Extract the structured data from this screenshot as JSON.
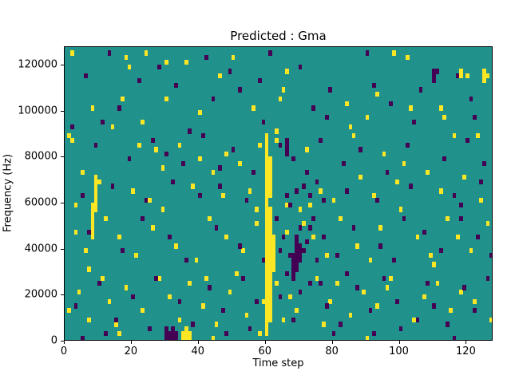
{
  "chart_data": {
    "type": "heatmap",
    "title": "Predicted : Gma",
    "xlabel": "Time step",
    "ylabel": "Frequency (Hz)",
    "xlim": [
      0,
      128
    ],
    "ylim": [
      0,
      128000
    ],
    "x_ticks": [
      0,
      20,
      40,
      60,
      80,
      100,
      120
    ],
    "y_ticks": [
      0,
      20000,
      40000,
      60000,
      80000,
      100000,
      120000
    ],
    "grid": false,
    "legend": "none",
    "cell_size": {
      "x": 1,
      "y_hz": 2000
    },
    "colors": {
      "background": "#21918c",
      "high": "#fde725",
      "low": "#440154",
      "figure_bg": "#ffffff"
    },
    "cells": {
      "y_spans": [
        [
          60,
          2000,
          88000
        ],
        [
          61,
          8000,
          56000
        ],
        [
          61,
          62000,
          78000
        ],
        [
          62,
          30000,
          44000
        ],
        [
          8,
          44000,
          58000
        ],
        [
          9,
          56000,
          70000
        ],
        [
          35,
          0,
          2000
        ],
        [
          36,
          0,
          4000
        ],
        [
          37,
          0,
          2000
        ],
        [
          118,
          114000,
          116000
        ],
        [
          125,
          112000,
          116000
        ]
      ],
      "d_spans": [
        [
          30,
          0,
          4000
        ],
        [
          31,
          0,
          2000
        ],
        [
          32,
          0,
          4000
        ],
        [
          33,
          0,
          2000
        ],
        [
          68,
          26000,
          36000
        ],
        [
          69,
          30000,
          42000
        ],
        [
          70,
          34000,
          40000
        ],
        [
          110,
          112000,
          116000
        ],
        [
          66,
          80000,
          86000
        ]
      ],
      "y": [
        [
          2,
          124000
        ],
        [
          18,
          122000
        ],
        [
          19,
          118000
        ],
        [
          24,
          124000
        ],
        [
          30,
          120000
        ],
        [
          36,
          120000
        ],
        [
          50,
          122000
        ],
        [
          56,
          100000
        ],
        [
          64,
          104000
        ],
        [
          65,
          108000
        ],
        [
          66,
          116000
        ],
        [
          84,
          102000
        ],
        [
          98,
          124000
        ],
        [
          102,
          122000
        ],
        [
          103,
          100000
        ],
        [
          120,
          114000
        ],
        [
          125,
          116000
        ],
        [
          126,
          114000
        ],
        [
          17,
          104000
        ],
        [
          30,
          104000
        ],
        [
          8,
          100000
        ],
        [
          46,
          114000
        ],
        [
          93,
          106000
        ],
        [
          112,
          100000
        ],
        [
          14,
          92000
        ],
        [
          63,
          90000
        ],
        [
          90,
          96000
        ],
        [
          113,
          96000
        ],
        [
          23,
          94000
        ],
        [
          40,
          98000
        ],
        [
          85,
          92000
        ],
        [
          1,
          88000
        ],
        [
          2,
          86000
        ],
        [
          22,
          84000
        ],
        [
          27,
          82000
        ],
        [
          34,
          84000
        ],
        [
          40,
          78000
        ],
        [
          44,
          72000
        ],
        [
          52,
          76000
        ],
        [
          58,
          84000
        ],
        [
          63,
          86000
        ],
        [
          72,
          82000
        ],
        [
          86,
          88000
        ],
        [
          95,
          80000
        ],
        [
          101,
          76000
        ],
        [
          108,
          72000
        ],
        [
          116,
          88000
        ],
        [
          123,
          88000
        ],
        [
          5,
          72000
        ],
        [
          88,
          70000
        ],
        [
          119,
          70000
        ],
        [
          29,
          74000
        ],
        [
          48,
          80000
        ],
        [
          10,
          68000
        ],
        [
          20,
          64000
        ],
        [
          25,
          60000
        ],
        [
          38,
          66000
        ],
        [
          47,
          62000
        ],
        [
          55,
          64000
        ],
        [
          76,
          64000
        ],
        [
          80,
          60000
        ],
        [
          92,
          62000
        ],
        [
          99,
          68000
        ],
        [
          112,
          64000
        ],
        [
          124,
          60000
        ],
        [
          3,
          58000
        ],
        [
          70,
          56000
        ],
        [
          29,
          56000
        ],
        [
          57,
          56000
        ],
        [
          66,
          58000
        ],
        [
          100,
          56000
        ],
        [
          73,
          58000
        ],
        [
          3,
          46000
        ],
        [
          6,
          38000
        ],
        [
          12,
          52000
        ],
        [
          16,
          44000
        ],
        [
          21,
          36000
        ],
        [
          26,
          48000
        ],
        [
          33,
          40000
        ],
        [
          39,
          34000
        ],
        [
          43,
          52000
        ],
        [
          48,
          44000
        ],
        [
          53,
          38000
        ],
        [
          57,
          50000
        ],
        [
          66,
          46000
        ],
        [
          74,
          44000
        ],
        [
          78,
          36000
        ],
        [
          82,
          52000
        ],
        [
          87,
          40000
        ],
        [
          91,
          34000
        ],
        [
          94,
          48000
        ],
        [
          105,
          44000
        ],
        [
          109,
          36000
        ],
        [
          114,
          52000
        ],
        [
          117,
          44000
        ],
        [
          121,
          38000
        ],
        [
          126,
          50000
        ],
        [
          71,
          50000
        ],
        [
          110,
          32000
        ],
        [
          7,
          30000
        ],
        [
          1,
          12000
        ],
        [
          4,
          20000
        ],
        [
          7,
          8000
        ],
        [
          11,
          26000
        ],
        [
          13,
          16000
        ],
        [
          15,
          6000
        ],
        [
          18,
          22000
        ],
        [
          23,
          12000
        ],
        [
          28,
          26000
        ],
        [
          31,
          18000
        ],
        [
          34,
          8000
        ],
        [
          37,
          24000
        ],
        [
          41,
          14000
        ],
        [
          45,
          6000
        ],
        [
          49,
          20000
        ],
        [
          51,
          28000
        ],
        [
          54,
          10000
        ],
        [
          59,
          16000
        ],
        [
          63,
          24000
        ],
        [
          65,
          8000
        ],
        [
          67,
          18000
        ],
        [
          69,
          12000
        ],
        [
          75,
          26000
        ],
        [
          77,
          6000
        ],
        [
          79,
          16000
        ],
        [
          81,
          24000
        ],
        [
          85,
          10000
        ],
        [
          89,
          20000
        ],
        [
          93,
          14000
        ],
        [
          97,
          26000
        ],
        [
          104,
          8000
        ],
        [
          107,
          18000
        ],
        [
          111,
          24000
        ],
        [
          115,
          12000
        ],
        [
          118,
          20000
        ],
        [
          122,
          16000
        ],
        [
          127,
          8000
        ],
        [
          42,
          26000
        ],
        [
          96,
          22000
        ],
        [
          44,
          0
        ],
        [
          58,
          2000
        ],
        [
          90,
          0
        ],
        [
          16,
          2000
        ]
      ],
      "d": [
        [
          13,
          124000
        ],
        [
          28,
          118000
        ],
        [
          42,
          122000
        ],
        [
          49,
          116000
        ],
        [
          61,
          124000
        ],
        [
          70,
          118000
        ],
        [
          90,
          124000
        ],
        [
          111,
          116000
        ],
        [
          117,
          114000
        ],
        [
          6,
          114000
        ],
        [
          22,
          112000
        ],
        [
          33,
          110000
        ],
        [
          58,
          112000
        ],
        [
          79,
          108000
        ],
        [
          92,
          110000
        ],
        [
          106,
          108000
        ],
        [
          121,
          104000
        ],
        [
          16,
          100000
        ],
        [
          44,
          104000
        ],
        [
          74,
          100000
        ],
        [
          97,
          102000
        ],
        [
          52,
          108000
        ],
        [
          11,
          94000
        ],
        [
          37,
          90000
        ],
        [
          59,
          94000
        ],
        [
          78,
          96000
        ],
        [
          104,
          94000
        ],
        [
          122,
          96000
        ],
        [
          2,
          92000
        ],
        [
          9,
          84000
        ],
        [
          19,
          78000
        ],
        [
          26,
          86000
        ],
        [
          35,
          76000
        ],
        [
          41,
          88000
        ],
        [
          50,
          82000
        ],
        [
          56,
          72000
        ],
        [
          64,
          84000
        ],
        [
          68,
          78000
        ],
        [
          72,
          72000
        ],
        [
          76,
          86000
        ],
        [
          83,
          76000
        ],
        [
          88,
          82000
        ],
        [
          96,
          72000
        ],
        [
          102,
          84000
        ],
        [
          113,
          78000
        ],
        [
          120,
          86000
        ],
        [
          125,
          76000
        ],
        [
          46,
          74000
        ],
        [
          30,
          80000
        ],
        [
          5,
          62000
        ],
        [
          14,
          66000
        ],
        [
          24,
          60000
        ],
        [
          32,
          68000
        ],
        [
          40,
          62000
        ],
        [
          46,
          66000
        ],
        [
          54,
          60000
        ],
        [
          66,
          62000
        ],
        [
          71,
          66000
        ],
        [
          73,
          62000
        ],
        [
          75,
          68000
        ],
        [
          84,
          64000
        ],
        [
          93,
          60000
        ],
        [
          103,
          66000
        ],
        [
          116,
          62000
        ],
        [
          124,
          68000
        ],
        [
          67,
          58000
        ],
        [
          69,
          64000
        ],
        [
          77,
          60000
        ],
        [
          118,
          58000
        ],
        [
          7,
          46000
        ],
        [
          17,
          38000
        ],
        [
          23,
          52000
        ],
        [
          31,
          44000
        ],
        [
          36,
          34000
        ],
        [
          45,
          48000
        ],
        [
          52,
          40000
        ],
        [
          59,
          34000
        ],
        [
          63,
          52000
        ],
        [
          65,
          44000
        ],
        [
          67,
          36000
        ],
        [
          70,
          48000
        ],
        [
          72,
          42000
        ],
        [
          74,
          52000
        ],
        [
          77,
          44000
        ],
        [
          81,
          36000
        ],
        [
          86,
          48000
        ],
        [
          94,
          40000
        ],
        [
          98,
          34000
        ],
        [
          101,
          52000
        ],
        [
          107,
          46000
        ],
        [
          112,
          38000
        ],
        [
          118,
          52000
        ],
        [
          123,
          44000
        ],
        [
          127,
          36000
        ],
        [
          69,
          44000
        ],
        [
          71,
          38000
        ],
        [
          73,
          48000
        ],
        [
          75,
          34000
        ],
        [
          64,
          38000
        ],
        [
          3,
          14000
        ],
        [
          10,
          24000
        ],
        [
          15,
          8000
        ],
        [
          20,
          18000
        ],
        [
          27,
          26000
        ],
        [
          34,
          16000
        ],
        [
          38,
          6000
        ],
        [
          43,
          22000
        ],
        [
          47,
          12000
        ],
        [
          53,
          26000
        ],
        [
          57,
          16000
        ],
        [
          64,
          18000
        ],
        [
          68,
          8000
        ],
        [
          73,
          24000
        ],
        [
          78,
          14000
        ],
        [
          82,
          6000
        ],
        [
          87,
          22000
        ],
        [
          91,
          12000
        ],
        [
          95,
          26000
        ],
        [
          99,
          16000
        ],
        [
          105,
          8000
        ],
        [
          108,
          24000
        ],
        [
          110,
          14000
        ],
        [
          114,
          6000
        ],
        [
          119,
          22000
        ],
        [
          122,
          12000
        ],
        [
          126,
          26000
        ],
        [
          66,
          28000
        ],
        [
          70,
          20000
        ],
        [
          76,
          24000
        ],
        [
          84,
          28000
        ],
        [
          12,
          2000
        ],
        [
          25,
          4000
        ],
        [
          48,
          2000
        ],
        [
          55,
          4000
        ],
        [
          80,
          2000
        ],
        [
          100,
          4000
        ],
        [
          5,
          0
        ],
        [
          92,
          2000
        ],
        [
          116,
          0
        ]
      ]
    }
  }
}
